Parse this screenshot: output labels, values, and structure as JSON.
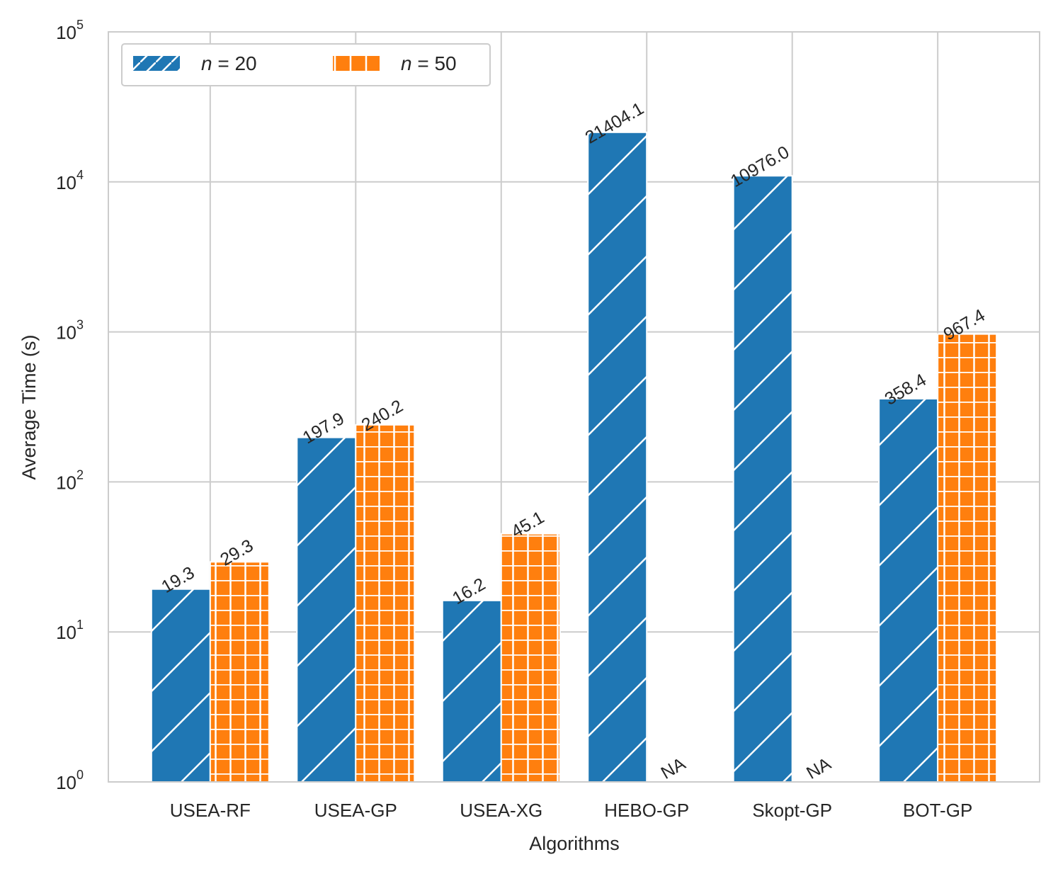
{
  "chart_data": {
    "type": "bar",
    "yscale": "log",
    "xlabel": "Algorithms",
    "ylabel": "Average Time (s)",
    "ylim": [
      1,
      100000
    ],
    "yticks": [
      {
        "value": 1,
        "base": "10",
        "exp": "0"
      },
      {
        "value": 10,
        "base": "10",
        "exp": "1"
      },
      {
        "value": 100,
        "base": "10",
        "exp": "2"
      },
      {
        "value": 1000,
        "base": "10",
        "exp": "3"
      },
      {
        "value": 10000,
        "base": "10",
        "exp": "4"
      },
      {
        "value": 100000,
        "base": "10",
        "exp": "5"
      }
    ],
    "categories": [
      "USEA-RF",
      "USEA-GP",
      "USEA-XG",
      "HEBO-GP",
      "Skopt-GP",
      "BOT-GP"
    ],
    "series": [
      {
        "name": "n = 20",
        "legend_var": "n",
        "legend_rest": " = 20",
        "color": "#1f77b4",
        "hatch": "diagonal",
        "values": [
          19.3,
          197.9,
          16.2,
          21404.1,
          10976.0,
          358.4
        ],
        "labels": [
          "19.3",
          "197.9",
          "16.2",
          "21404.1",
          "10976.0",
          "358.4"
        ]
      },
      {
        "name": "n = 50",
        "legend_var": "n",
        "legend_rest": " = 50",
        "color": "#ff7f0e",
        "hatch": "grid",
        "values": [
          29.3,
          240.2,
          45.1,
          null,
          null,
          967.4
        ],
        "labels": [
          "29.3",
          "240.2",
          "45.1",
          "NA",
          "NA",
          "967.4"
        ]
      }
    ],
    "grid": true,
    "legend_position": "top-left"
  }
}
